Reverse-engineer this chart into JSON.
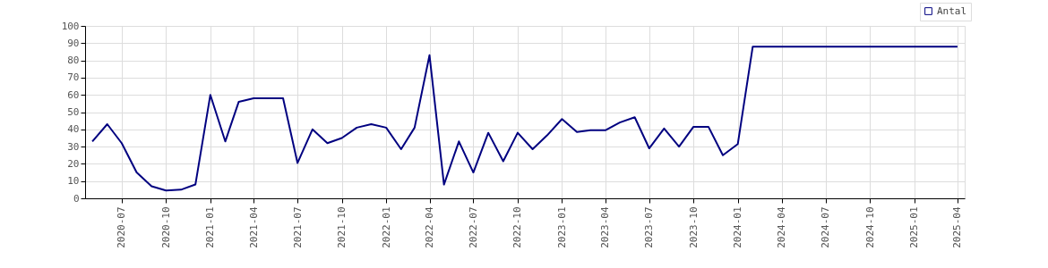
{
  "chart_data": {
    "type": "line",
    "x": [
      "2020-05",
      "2020-06",
      "2020-07",
      "2020-08",
      "2020-09",
      "2020-10",
      "2020-11",
      "2020-12",
      "2021-01",
      "2021-02",
      "2021-03",
      "2021-04",
      "2021-05",
      "2021-06",
      "2021-07",
      "2021-08",
      "2021-09",
      "2021-10",
      "2021-11",
      "2021-12",
      "2022-01",
      "2022-02",
      "2022-03",
      "2022-04",
      "2022-05",
      "2022-06",
      "2022-07",
      "2022-08",
      "2022-09",
      "2022-10",
      "2022-11",
      "2022-12",
      "2023-01",
      "2023-02",
      "2023-03",
      "2023-04",
      "2023-05",
      "2023-06",
      "2023-07",
      "2023-08",
      "2023-09",
      "2023-10",
      "2023-11",
      "2023-12",
      "2024-01",
      "2024-02",
      "2024-03",
      "2024-04",
      "2024-05",
      "2024-06",
      "2024-07",
      "2024-08",
      "2024-09",
      "2024-10",
      "2024-11",
      "2024-12",
      "2025-01",
      "2025-02",
      "2025-03",
      "2025-04"
    ],
    "series": [
      {
        "name": "Antal",
        "color": "#000080",
        "values": [
          33,
          43,
          32,
          15,
          7,
          4.5,
          5,
          8,
          60,
          33,
          56,
          58,
          58,
          58,
          20.5,
          40,
          32,
          35,
          41,
          43,
          41,
          28.5,
          41,
          83,
          8,
          33,
          15,
          38,
          21.5,
          38,
          28.5,
          36.5,
          46,
          38.5,
          39.5,
          39.5,
          44,
          47,
          29,
          40.5,
          30,
          41.5,
          41.5,
          25,
          31.5,
          88,
          88,
          88,
          88,
          88,
          88,
          88,
          88,
          88,
          88,
          88,
          88,
          88,
          88,
          88
        ]
      }
    ],
    "xlim": [
      "2020-04-16",
      "2025-04-16"
    ],
    "xticks": [
      {
        "value": "2020-07",
        "label": "2020-07"
      },
      {
        "value": "2020-10",
        "label": "2020-10"
      },
      {
        "value": "2021-01",
        "label": "2021-01"
      },
      {
        "value": "2021-04",
        "label": "2021-04"
      },
      {
        "value": "2021-07",
        "label": "2021-07"
      },
      {
        "value": "2021-10",
        "label": "2021-10"
      },
      {
        "value": "2022-01",
        "label": "2022-01"
      },
      {
        "value": "2022-04",
        "label": "2022-04"
      },
      {
        "value": "2022-07",
        "label": "2022-07"
      },
      {
        "value": "2022-10",
        "label": "2022-10"
      },
      {
        "value": "2023-01",
        "label": "2023-01"
      },
      {
        "value": "2023-04",
        "label": "2023-04"
      },
      {
        "value": "2023-07",
        "label": "2023-07"
      },
      {
        "value": "2023-10",
        "label": "2023-10"
      },
      {
        "value": "2024-01",
        "label": "2024-01"
      },
      {
        "value": "2024-04",
        "label": "2024-04"
      },
      {
        "value": "2024-07",
        "label": "2024-07"
      },
      {
        "value": "2024-10",
        "label": "2024-10"
      },
      {
        "value": "2025-01",
        "label": "2025-01"
      },
      {
        "value": "2025-04",
        "label": "2025-04"
      }
    ],
    "ylim": [
      0,
      100
    ],
    "yticks": [
      0,
      10,
      20,
      30,
      40,
      50,
      60,
      70,
      80,
      90,
      100
    ],
    "grid": true,
    "legend": "top right",
    "marker": "none",
    "line_style": "solid"
  }
}
